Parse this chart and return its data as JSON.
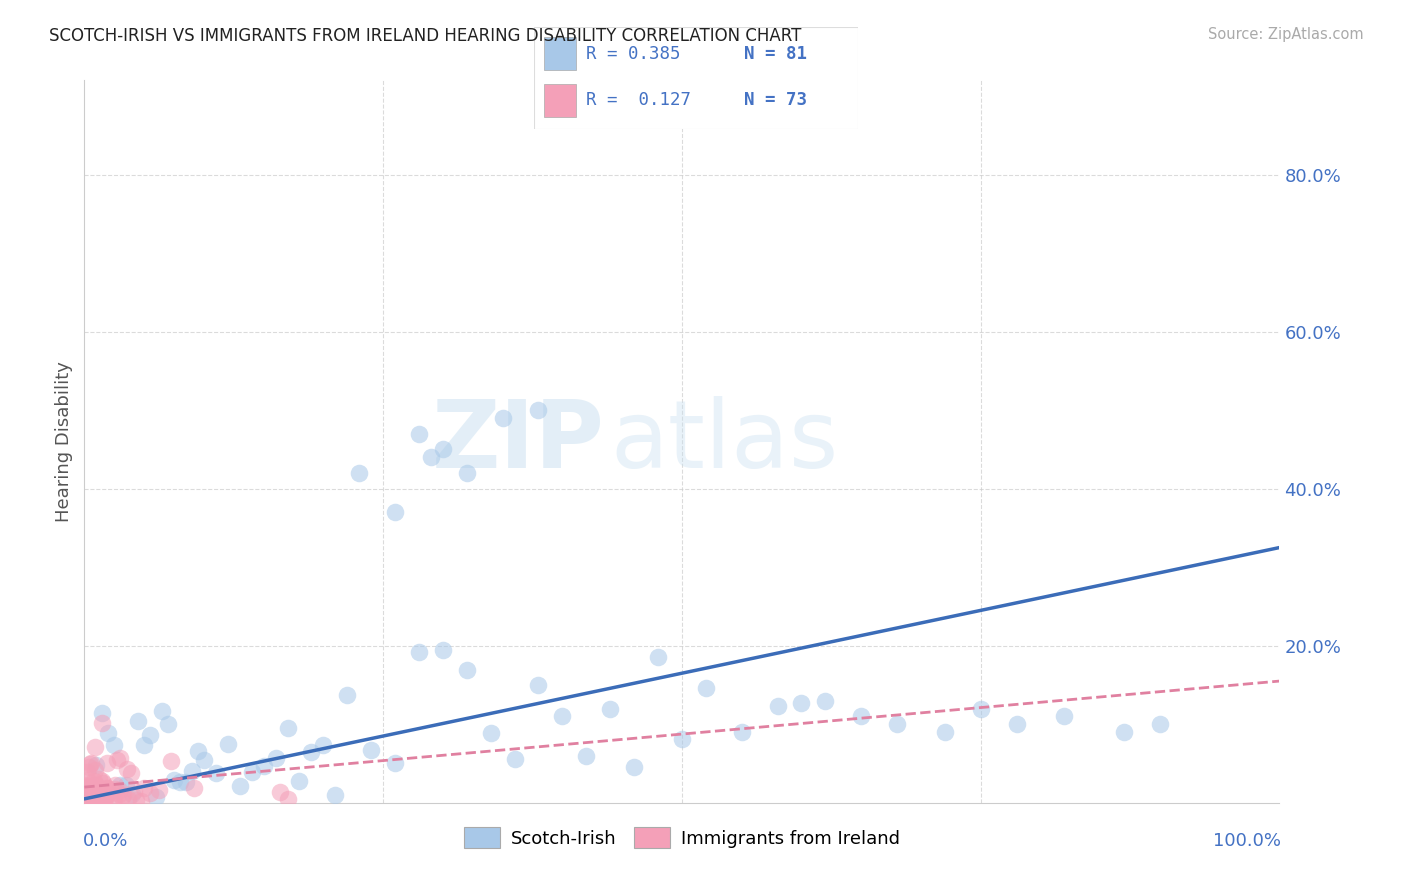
{
  "title": "SCOTCH-IRISH VS IMMIGRANTS FROM IRELAND HEARING DISABILITY CORRELATION CHART",
  "source": "Source: ZipAtlas.com",
  "ylabel": "Hearing Disability",
  "color_blue": "#A8C8E8",
  "color_pink": "#F4A0B8",
  "color_blue_line": "#3B6CB8",
  "color_pink_line": "#E080A0",
  "color_blue_text": "#4472C4",
  "background_color": "#FFFFFF",
  "grid_color": "#CCCCCC",
  "ytick_vals": [
    0.0,
    0.2,
    0.4,
    0.6,
    0.8
  ],
  "ytick_labels": [
    "",
    "20.0%",
    "40.0%",
    "60.0%",
    "80.0%"
  ],
  "xlim": [
    0.0,
    1.0
  ],
  "ylim": [
    0.0,
    0.92
  ],
  "si_line_x0": 0.0,
  "si_line_y0": 0.005,
  "si_line_x1": 1.0,
  "si_line_y1": 0.325,
  "ire_line_x0": 0.0,
  "ire_line_y0": 0.02,
  "ire_line_x1": 1.0,
  "ire_line_y1": 0.155,
  "watermark_zip": "ZIP",
  "watermark_atlas": "atlas",
  "legend_r1": "R = 0.385",
  "legend_n1": "N = 81",
  "legend_r2": "R =  0.127",
  "legend_n2": "N = 73"
}
